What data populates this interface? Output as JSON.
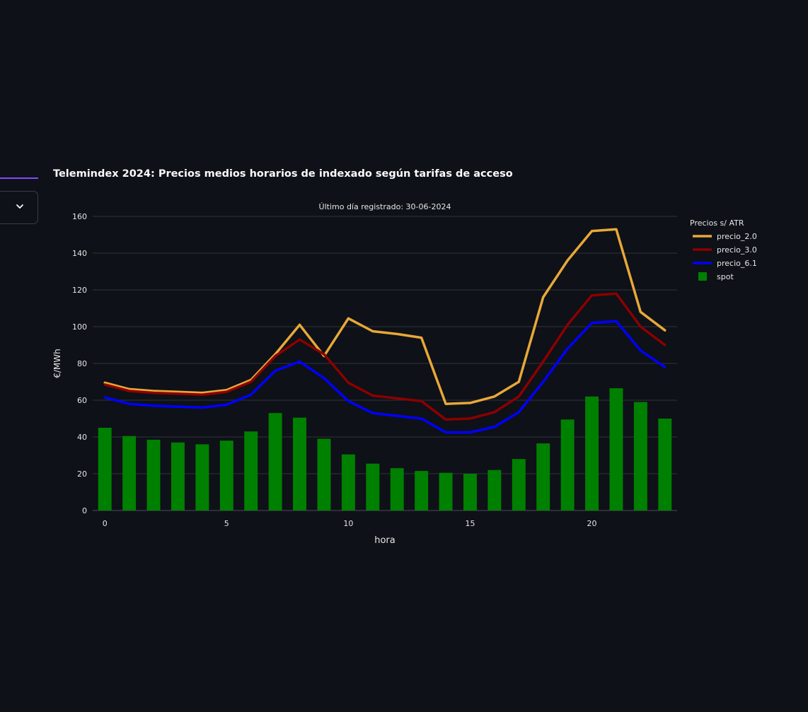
{
  "ui": {
    "dropdown_icon": "chevron-down-icon"
  },
  "colors": {
    "background": "#0e1117",
    "grid": "#31343c",
    "text": "#e6e6e6",
    "tab_accent": "#7c4dff"
  },
  "chart_data": {
    "type": "bar",
    "title": "Telemindex 2024: Precios medios horarios de indexado según tarifas de acceso",
    "subtitle": "Último día registrado: 30-06-2024",
    "xlabel": "hora",
    "ylabel": "€/MWh",
    "xlim": [
      -0.5,
      23.5
    ],
    "ylim": [
      0,
      160
    ],
    "x_ticks": [
      0,
      5,
      10,
      15,
      20
    ],
    "y_ticks": [
      0,
      20,
      40,
      60,
      80,
      100,
      120,
      140,
      160
    ],
    "grid": true,
    "legend": {
      "title": "Precios s/ ATR",
      "placement": "right"
    },
    "x": [
      0,
      1,
      2,
      3,
      4,
      5,
      6,
      7,
      8,
      9,
      10,
      11,
      12,
      13,
      14,
      15,
      16,
      17,
      18,
      19,
      20,
      21,
      22,
      23
    ],
    "series": [
      {
        "name": "precio_2.0",
        "type": "line",
        "color": "#e8a838",
        "values": [
          69.5,
          66,
          65,
          64.5,
          64,
          65.5,
          71,
          85,
          101,
          84,
          104.5,
          97.5,
          96,
          94,
          58,
          58.5,
          62,
          70,
          116,
          136,
          152,
          153,
          108,
          98
        ]
      },
      {
        "name": "precio_3.0",
        "type": "line",
        "color": "#8b0000",
        "values": [
          68.5,
          65,
          64,
          63.5,
          63,
          64.5,
          70,
          84,
          93,
          85,
          69.5,
          62.5,
          61,
          59.5,
          49.5,
          50,
          53.5,
          62,
          81,
          101,
          117,
          118,
          100,
          90
        ]
      },
      {
        "name": "precio_6.1",
        "type": "line",
        "color": "#0000ff",
        "values": [
          61.5,
          58,
          57,
          56.5,
          56,
          57.5,
          63,
          76,
          81,
          72,
          59.5,
          53,
          51.5,
          50,
          42.5,
          42.5,
          45.5,
          53.5,
          70,
          88,
          102,
          103,
          87,
          78
        ]
      },
      {
        "name": "spot",
        "type": "bar",
        "color": "#008000",
        "values": [
          45,
          40.5,
          38.5,
          37,
          36,
          38,
          43,
          53,
          50.5,
          39,
          30.5,
          25.5,
          23,
          21.5,
          20.5,
          20,
          22,
          28,
          36.5,
          49.5,
          62,
          66.5,
          59,
          50
        ]
      }
    ]
  }
}
